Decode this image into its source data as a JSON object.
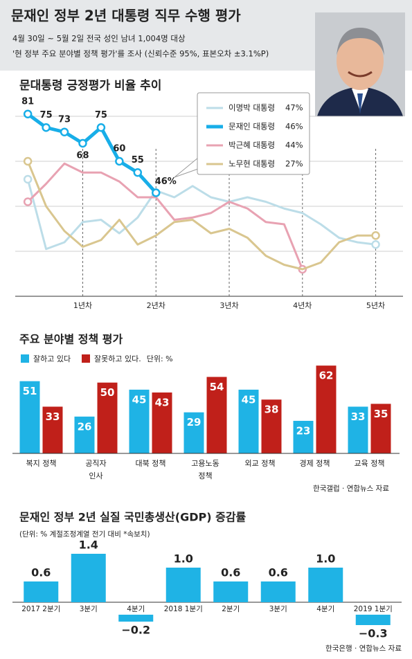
{
  "header": {
    "title": "문재인 정부 2년 대통령 직무 수행 평가",
    "lines": [
      "4월 30일 ~ 5월 2일 전국 성인 남녀 1,004명 대상",
      "'현 정부 주요 분야별 정책 평가'를 조사 (신뢰수준 95%, 표본오차 ±3.1%P)"
    ]
  },
  "chart_data": [
    {
      "type": "line",
      "title": "문대통령 긍정평가 비율 추이",
      "x": [
        0.25,
        0.5,
        0.75,
        1,
        1.25,
        1.5,
        1.75,
        2,
        2.25,
        2.5,
        2.75,
        3,
        3.25,
        3.5,
        3.75,
        4,
        4.25,
        4.5,
        4.75,
        5
      ],
      "xlim": [
        0.05,
        5.25
      ],
      "xticks": [
        {
          "value": 1,
          "label": "1년차"
        },
        {
          "value": 2,
          "label": "2년차"
        },
        {
          "value": 3,
          "label": "3년차"
        },
        {
          "value": 4,
          "label": "4년차"
        },
        {
          "value": 5,
          "label": "5년차"
        }
      ],
      "ylim": [
        0,
        88
      ],
      "yticks": [
        0,
        20,
        40,
        60,
        80
      ],
      "grid": true,
      "series": [
        {
          "name": "이명박 대통령",
          "legend_value": "47%",
          "color": "#bcdde8",
          "values": [
            52,
            21,
            24,
            33,
            34,
            28,
            35,
            47,
            44,
            49,
            44,
            42,
            44,
            42,
            39,
            37,
            32,
            26,
            24,
            23
          ]
        },
        {
          "name": "문재인 대통령",
          "legend_value": "46%",
          "color": "#18aee8",
          "values": [
            81,
            75,
            73,
            68,
            75,
            60,
            55,
            46,
            null,
            null,
            null,
            null,
            null,
            null,
            null,
            null,
            null,
            null,
            null,
            null
          ],
          "value_labels": [
            "81",
            "75",
            "73",
            "68",
            "75",
            "60",
            "55",
            "46%",
            null,
            null,
            null,
            null,
            null,
            null,
            null,
            null,
            null,
            null,
            null,
            null
          ]
        },
        {
          "name": "박근혜 대통령",
          "legend_value": "44%",
          "color": "#e8a2b2",
          "values": [
            42,
            50,
            59,
            55,
            55,
            51,
            44,
            44,
            34,
            35,
            37,
            42,
            39,
            33,
            32,
            12,
            null,
            null,
            null,
            null
          ]
        },
        {
          "name": "노무현 대통령",
          "legend_value": "27%",
          "color": "#d9c68f",
          "values": [
            60,
            40,
            29,
            22,
            25,
            34,
            23,
            27,
            33,
            34,
            28,
            30,
            26,
            18,
            14,
            12,
            15,
            24,
            27,
            27
          ]
        }
      ]
    },
    {
      "type": "grouped-bar",
      "title": "주요 분야별 정책 평가",
      "unit": "단위: %",
      "categories": [
        "복지 정책",
        "공직자\n인사",
        "대북 정책",
        "고용노동\n정책",
        "외교 정책",
        "경제 정책",
        "교육 정책"
      ],
      "ylim": [
        0,
        65
      ],
      "series": [
        {
          "name": "잘하고 있다",
          "color": "#1fb3e5",
          "values": [
            51,
            26,
            45,
            29,
            45,
            23,
            33
          ]
        },
        {
          "name": "잘못하고 있다.",
          "color": "#c0201a",
          "values": [
            33,
            50,
            43,
            54,
            38,
            62,
            35
          ]
        }
      ],
      "source": "한국갤럽 · 연합뉴스 자료"
    },
    {
      "type": "bar",
      "title": "문재인 정부 2년 실질 국민총생산(GDP) 증감률",
      "subtitle": "(단위: % 계절조정계열 전기 대비  *속보치)",
      "categories": [
        "2017 2분기",
        "3분기",
        "4분기",
        "2018 1분기",
        "2분기",
        "3분기",
        "4분기",
        "2019 1분기"
      ],
      "values": [
        0.6,
        1.4,
        -0.2,
        1.0,
        0.6,
        0.6,
        1.0,
        -0.3
      ],
      "value_labels": [
        "0.6",
        "1.4",
        "−0.2",
        "1.0",
        "0.6",
        "0.6",
        "1.0",
        "−0.3"
      ],
      "color": "#1fb3e5",
      "ylim": [
        -0.5,
        1.6
      ],
      "source": "한국은행 · 연합뉴스 자료"
    }
  ]
}
